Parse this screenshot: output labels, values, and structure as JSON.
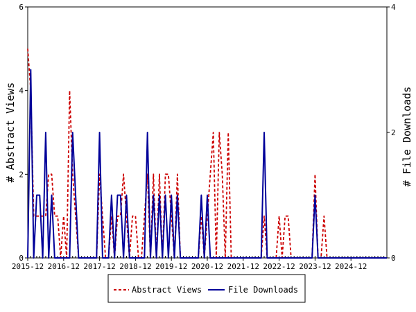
{
  "chart_data": {
    "type": "line",
    "title": "",
    "grid": false,
    "legend_position": "bottom-center",
    "x_start": "2015-12",
    "x_end": "2025-12",
    "x_ticks": [
      "2015-12",
      "2016-12",
      "2017-12",
      "2018-12",
      "2019-12",
      "2020-12",
      "2021-12",
      "2022-12",
      "2023-12",
      "2024-12"
    ],
    "left_axis": {
      "label": "# Abstract Views",
      "ylim": [
        0,
        6
      ],
      "ticks": [
        "0",
        "2",
        "4",
        "6"
      ]
    },
    "right_axis": {
      "label": "# File Downloads",
      "ylim": [
        0,
        4
      ],
      "ticks": [
        "0",
        "2",
        "4"
      ]
    },
    "series": [
      {
        "name": "Abstract Views",
        "axis": "left",
        "color": "#cc0000",
        "style": "dashed",
        "points": [
          [
            "2015-12",
            5
          ],
          [
            "2016-01",
            4
          ],
          [
            "2016-02",
            1
          ],
          [
            "2016-03",
            1
          ],
          [
            "2016-04",
            1
          ],
          [
            "2016-05",
            1
          ],
          [
            "2016-06",
            1
          ],
          [
            "2016-07",
            2
          ],
          [
            "2016-08",
            2
          ],
          [
            "2016-09",
            1
          ],
          [
            "2016-10",
            1
          ],
          [
            "2016-11",
            0
          ],
          [
            "2016-12",
            1
          ],
          [
            "2017-01",
            0
          ],
          [
            "2017-02",
            4
          ],
          [
            "2017-03",
            2
          ],
          [
            "2017-04",
            1
          ],
          [
            "2017-05",
            0
          ],
          [
            "2017-06",
            0
          ],
          [
            "2017-07",
            0
          ],
          [
            "2017-08",
            0
          ],
          [
            "2017-09",
            0
          ],
          [
            "2017-10",
            0
          ],
          [
            "2017-11",
            0
          ],
          [
            "2017-12",
            2
          ],
          [
            "2018-01",
            1
          ],
          [
            "2018-02",
            0
          ],
          [
            "2018-03",
            0
          ],
          [
            "2018-04",
            1
          ],
          [
            "2018-05",
            0
          ],
          [
            "2018-06",
            1
          ],
          [
            "2018-07",
            1
          ],
          [
            "2018-08",
            2
          ],
          [
            "2018-09",
            1
          ],
          [
            "2018-10",
            0
          ],
          [
            "2018-11",
            1
          ],
          [
            "2018-12",
            1
          ],
          [
            "2019-01",
            0
          ],
          [
            "2019-02",
            0
          ],
          [
            "2019-03",
            1
          ],
          [
            "2019-04",
            2
          ],
          [
            "2019-05",
            0
          ],
          [
            "2019-06",
            2
          ],
          [
            "2019-07",
            0
          ],
          [
            "2019-08",
            2
          ],
          [
            "2019-09",
            0
          ],
          [
            "2019-10",
            2
          ],
          [
            "2019-11",
            2
          ],
          [
            "2019-12",
            1
          ],
          [
            "2020-01",
            0
          ],
          [
            "2020-02",
            2
          ],
          [
            "2020-03",
            0
          ],
          [
            "2020-04",
            0
          ],
          [
            "2020-05",
            0
          ],
          [
            "2020-06",
            0
          ],
          [
            "2020-07",
            0
          ],
          [
            "2020-08",
            0
          ],
          [
            "2020-09",
            0
          ],
          [
            "2020-10",
            1
          ],
          [
            "2020-11",
            0
          ],
          [
            "2020-12",
            1
          ],
          [
            "2021-01",
            2
          ],
          [
            "2021-02",
            3
          ],
          [
            "2021-03",
            0
          ],
          [
            "2021-04",
            3
          ],
          [
            "2021-05",
            2
          ],
          [
            "2021-06",
            0
          ],
          [
            "2021-07",
            3
          ],
          [
            "2021-08",
            0
          ],
          [
            "2021-09",
            0
          ],
          [
            "2021-10",
            0
          ],
          [
            "2021-11",
            0
          ],
          [
            "2021-12",
            0
          ],
          [
            "2022-01",
            0
          ],
          [
            "2022-02",
            0
          ],
          [
            "2022-03",
            0
          ],
          [
            "2022-04",
            0
          ],
          [
            "2022-05",
            0
          ],
          [
            "2022-06",
            0
          ],
          [
            "2022-07",
            1
          ],
          [
            "2022-08",
            0
          ],
          [
            "2022-09",
            0
          ],
          [
            "2022-10",
            0
          ],
          [
            "2022-11",
            0
          ],
          [
            "2022-12",
            1
          ],
          [
            "2023-01",
            0
          ],
          [
            "2023-02",
            1
          ],
          [
            "2023-03",
            1
          ],
          [
            "2023-04",
            0
          ],
          [
            "2023-05",
            0
          ],
          [
            "2023-06",
            0
          ],
          [
            "2023-07",
            0
          ],
          [
            "2023-08",
            0
          ],
          [
            "2023-09",
            0
          ],
          [
            "2023-10",
            0
          ],
          [
            "2023-11",
            0
          ],
          [
            "2023-12",
            2
          ],
          [
            "2024-01",
            0
          ],
          [
            "2024-02",
            0
          ],
          [
            "2024-03",
            1
          ],
          [
            "2024-04",
            0
          ],
          [
            "2024-05",
            0
          ],
          [
            "2024-06",
            0
          ],
          [
            "2024-07",
            0
          ],
          [
            "2024-08",
            0
          ],
          [
            "2024-09",
            0
          ],
          [
            "2024-10",
            0
          ],
          [
            "2024-11",
            0
          ],
          [
            "2024-12",
            0
          ],
          [
            "2025-01",
            0
          ],
          [
            "2025-02",
            0
          ],
          [
            "2025-03",
            0
          ],
          [
            "2025-04",
            0
          ],
          [
            "2025-05",
            0
          ],
          [
            "2025-06",
            0
          ],
          [
            "2025-07",
            0
          ],
          [
            "2025-08",
            0
          ],
          [
            "2025-09",
            0
          ],
          [
            "2025-10",
            0
          ],
          [
            "2025-11",
            0
          ],
          [
            "2025-12",
            0
          ]
        ]
      },
      {
        "name": "File Downloads",
        "axis": "right",
        "color": "#000099",
        "style": "solid",
        "points": [
          [
            "2015-12",
            0
          ],
          [
            "2016-01",
            3
          ],
          [
            "2016-02",
            0
          ],
          [
            "2016-03",
            1
          ],
          [
            "2016-04",
            1
          ],
          [
            "2016-05",
            0
          ],
          [
            "2016-06",
            2
          ],
          [
            "2016-07",
            0
          ],
          [
            "2016-08",
            1
          ],
          [
            "2016-09",
            0
          ],
          [
            "2016-10",
            0
          ],
          [
            "2016-11",
            0
          ],
          [
            "2016-12",
            0
          ],
          [
            "2017-01",
            0
          ],
          [
            "2017-02",
            0
          ],
          [
            "2017-03",
            2
          ],
          [
            "2017-04",
            1
          ],
          [
            "2017-05",
            0
          ],
          [
            "2017-06",
            0
          ],
          [
            "2017-07",
            0
          ],
          [
            "2017-08",
            0
          ],
          [
            "2017-09",
            0
          ],
          [
            "2017-10",
            0
          ],
          [
            "2017-11",
            0
          ],
          [
            "2017-12",
            2
          ],
          [
            "2018-01",
            0
          ],
          [
            "2018-02",
            0
          ],
          [
            "2018-03",
            0
          ],
          [
            "2018-04",
            1
          ],
          [
            "2018-05",
            0
          ],
          [
            "2018-06",
            1
          ],
          [
            "2018-07",
            1
          ],
          [
            "2018-08",
            0
          ],
          [
            "2018-09",
            1
          ],
          [
            "2018-10",
            0
          ],
          [
            "2018-11",
            0
          ],
          [
            "2018-12",
            0
          ],
          [
            "2019-01",
            0
          ],
          [
            "2019-02",
            0
          ],
          [
            "2019-03",
            0
          ],
          [
            "2019-04",
            2
          ],
          [
            "2019-05",
            0
          ],
          [
            "2019-06",
            1
          ],
          [
            "2019-07",
            0
          ],
          [
            "2019-08",
            1
          ],
          [
            "2019-09",
            0
          ],
          [
            "2019-10",
            1
          ],
          [
            "2019-11",
            0
          ],
          [
            "2019-12",
            1
          ],
          [
            "2020-01",
            0
          ],
          [
            "2020-02",
            1
          ],
          [
            "2020-03",
            0
          ],
          [
            "2020-04",
            0
          ],
          [
            "2020-05",
            0
          ],
          [
            "2020-06",
            0
          ],
          [
            "2020-07",
            0
          ],
          [
            "2020-08",
            0
          ],
          [
            "2020-09",
            0
          ],
          [
            "2020-10",
            1
          ],
          [
            "2020-11",
            0
          ],
          [
            "2020-12",
            1
          ],
          [
            "2021-01",
            0
          ],
          [
            "2021-02",
            0
          ],
          [
            "2021-03",
            0
          ],
          [
            "2021-04",
            0
          ],
          [
            "2021-05",
            0
          ],
          [
            "2021-06",
            0
          ],
          [
            "2021-07",
            0
          ],
          [
            "2021-08",
            0
          ],
          [
            "2021-09",
            0
          ],
          [
            "2021-10",
            0
          ],
          [
            "2021-11",
            0
          ],
          [
            "2021-12",
            0
          ],
          [
            "2022-01",
            0
          ],
          [
            "2022-02",
            0
          ],
          [
            "2022-03",
            0
          ],
          [
            "2022-04",
            0
          ],
          [
            "2022-05",
            0
          ],
          [
            "2022-06",
            0
          ],
          [
            "2022-07",
            2
          ],
          [
            "2022-08",
            0
          ],
          [
            "2022-09",
            0
          ],
          [
            "2022-10",
            0
          ],
          [
            "2022-11",
            0
          ],
          [
            "2022-12",
            0
          ],
          [
            "2023-01",
            0
          ],
          [
            "2023-02",
            0
          ],
          [
            "2023-03",
            0
          ],
          [
            "2023-04",
            0
          ],
          [
            "2023-05",
            0
          ],
          [
            "2023-06",
            0
          ],
          [
            "2023-07",
            0
          ],
          [
            "2023-08",
            0
          ],
          [
            "2023-09",
            0
          ],
          [
            "2023-10",
            0
          ],
          [
            "2023-11",
            0
          ],
          [
            "2023-12",
            1
          ],
          [
            "2024-01",
            0
          ],
          [
            "2024-02",
            0
          ],
          [
            "2024-03",
            0
          ],
          [
            "2024-04",
            0
          ],
          [
            "2024-05",
            0
          ],
          [
            "2024-06",
            0
          ],
          [
            "2024-07",
            0
          ],
          [
            "2024-08",
            0
          ],
          [
            "2024-09",
            0
          ],
          [
            "2024-10",
            0
          ],
          [
            "2024-11",
            0
          ],
          [
            "2024-12",
            0
          ],
          [
            "2025-01",
            0
          ],
          [
            "2025-02",
            0
          ],
          [
            "2025-03",
            0
          ],
          [
            "2025-04",
            0
          ],
          [
            "2025-05",
            0
          ],
          [
            "2025-06",
            0
          ],
          [
            "2025-07",
            0
          ],
          [
            "2025-08",
            0
          ],
          [
            "2025-09",
            0
          ],
          [
            "2025-10",
            0
          ],
          [
            "2025-11",
            0
          ],
          [
            "2025-12",
            0
          ]
        ]
      }
    ]
  }
}
